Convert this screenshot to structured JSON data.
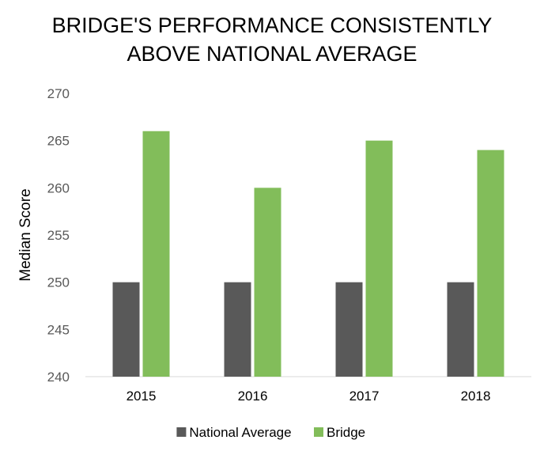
{
  "chart_data": {
    "type": "bar",
    "title_lines": [
      "BRIDGE'S PERFORMANCE CONSISTENTLY",
      "ABOVE NATIONAL AVERAGE"
    ],
    "xlabel": "",
    "ylabel": "Median Score",
    "categories": [
      "2015",
      "2016",
      "2017",
      "2018"
    ],
    "series": [
      {
        "name": "National Average",
        "color": "#595959",
        "values": [
          250,
          250,
          250,
          250
        ]
      },
      {
        "name": "Bridge",
        "color": "#82BD5A",
        "values": [
          266,
          260,
          265,
          264
        ]
      }
    ],
    "ylim": [
      240,
      270
    ],
    "yticks": [
      240,
      245,
      250,
      255,
      260,
      265,
      270
    ],
    "grid": false,
    "legend_position": "bottom"
  }
}
